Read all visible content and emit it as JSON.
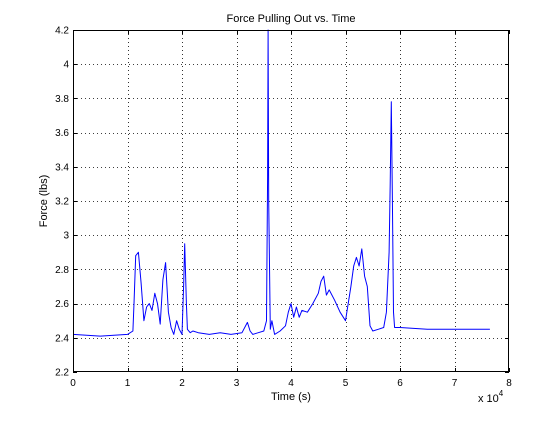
{
  "chart_data": {
    "type": "line",
    "title": "Force Pulling Out vs. Time",
    "xlabel": "Time (s)",
    "ylabel": "Force (lbs)",
    "x_multiplier": "x 10",
    "x_multiplier_exponent": "4",
    "xlim": [
      0,
      8
    ],
    "ylim": [
      2.2,
      4.2
    ],
    "grid": true,
    "xticks": [
      0,
      1,
      2,
      3,
      4,
      5,
      6,
      7,
      8
    ],
    "xtick_labels": [
      "0",
      "1",
      "2",
      "3",
      "4",
      "5",
      "6",
      "7",
      "8"
    ],
    "yticks": [
      2.2,
      2.4,
      2.6,
      2.8,
      3.0,
      3.2,
      3.4,
      3.6,
      3.8,
      4.0,
      4.2
    ],
    "ytick_labels": [
      "2.2",
      "2.4",
      "2.6",
      "2.8",
      "3",
      "3.2",
      "3.4",
      "3.6",
      "3.8",
      "4",
      "4.2"
    ],
    "series": [
      {
        "color": "#0000ff",
        "x": [
          0,
          0.5,
          1.0,
          1.1,
          1.12,
          1.15,
          1.2,
          1.25,
          1.3,
          1.35,
          1.4,
          1.45,
          1.5,
          1.55,
          1.6,
          1.65,
          1.7,
          1.75,
          1.8,
          1.85,
          1.9,
          1.95,
          2.0,
          2.03,
          2.05,
          2.08,
          2.1,
          2.15,
          2.2,
          2.3,
          2.5,
          2.7,
          2.9,
          3.1,
          3.2,
          3.25,
          3.3,
          3.4,
          3.5,
          3.55,
          3.57,
          3.58,
          3.59,
          3.62,
          3.65,
          3.7,
          3.8,
          3.9,
          3.95,
          4.0,
          4.05,
          4.1,
          4.15,
          4.2,
          4.3,
          4.4,
          4.5,
          4.55,
          4.6,
          4.65,
          4.7,
          4.8,
          4.9,
          5.0,
          5.1,
          5.15,
          5.2,
          5.25,
          5.3,
          5.35,
          5.4,
          5.45,
          5.5,
          5.6,
          5.7,
          5.75,
          5.8,
          5.82,
          5.84,
          5.86,
          5.88,
          5.9,
          6.0,
          6.5,
          7.0,
          7.5,
          7.65
        ],
        "y": [
          2.42,
          2.41,
          2.42,
          2.44,
          2.6,
          2.88,
          2.9,
          2.72,
          2.5,
          2.58,
          2.6,
          2.56,
          2.66,
          2.6,
          2.48,
          2.74,
          2.84,
          2.55,
          2.46,
          2.42,
          2.5,
          2.45,
          2.42,
          2.7,
          2.95,
          2.6,
          2.45,
          2.43,
          2.44,
          2.43,
          2.42,
          2.43,
          2.42,
          2.43,
          2.49,
          2.44,
          2.42,
          2.43,
          2.44,
          2.5,
          3.35,
          4.2,
          3.2,
          2.45,
          2.5,
          2.42,
          2.44,
          2.47,
          2.55,
          2.6,
          2.52,
          2.58,
          2.52,
          2.56,
          2.55,
          2.6,
          2.66,
          2.73,
          2.76,
          2.65,
          2.68,
          2.62,
          2.55,
          2.5,
          2.7,
          2.82,
          2.87,
          2.82,
          2.92,
          2.76,
          2.7,
          2.47,
          2.44,
          2.45,
          2.46,
          2.55,
          2.9,
          3.3,
          3.78,
          3.2,
          2.55,
          2.46,
          2.46,
          2.45,
          2.45,
          2.45,
          2.45
        ]
      }
    ]
  }
}
